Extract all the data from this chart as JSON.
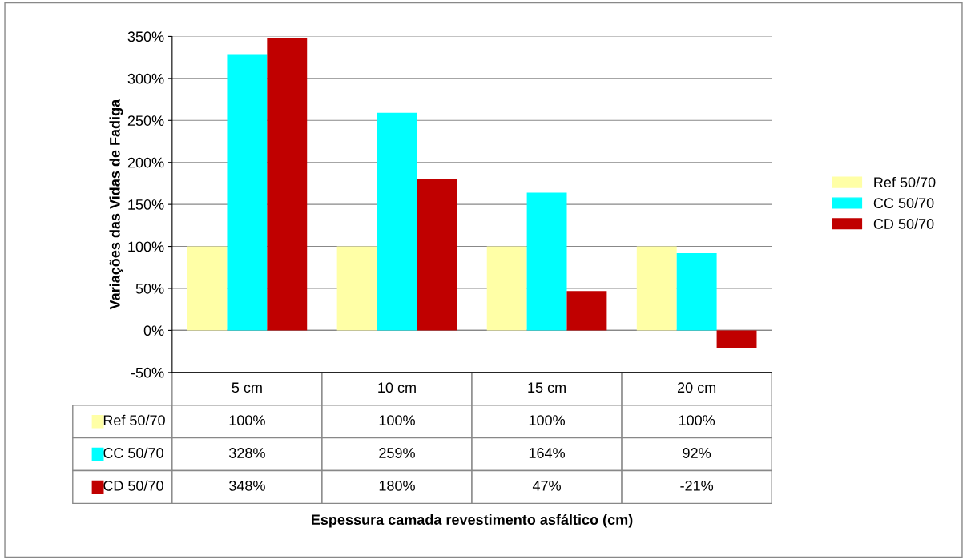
{
  "chart_data": {
    "type": "bar",
    "annotations": [
      "Espessura camada revestimento asfáltico (cm)"
    ],
    "ylabel": "Variações das Vidas de Fadiga",
    "categories": [
      "5 cm",
      "10 cm",
      "15 cm",
      "20 cm"
    ],
    "series": [
      {
        "name": "Ref 50/70",
        "color": "#ffffa6",
        "values": [
          100,
          100,
          100,
          100
        ],
        "value_labels": [
          "100%",
          "100%",
          "100%",
          "100%"
        ]
      },
      {
        "name": "CC 50/70",
        "color": "#00ffff",
        "values": [
          328,
          259,
          164,
          92
        ],
        "value_labels": [
          "328%",
          "259%",
          "164%",
          "92%"
        ]
      },
      {
        "name": "CD 50/70",
        "color": "#c00000",
        "values": [
          348,
          180,
          47,
          -21
        ],
        "value_labels": [
          "348%",
          "180%",
          "47%",
          "-21%"
        ]
      }
    ],
    "ylim": [
      -50,
      350
    ],
    "yticks": [
      {
        "value": -50,
        "label": "-50%"
      },
      {
        "value": 0,
        "label": "0%"
      },
      {
        "value": 50,
        "label": "50%"
      },
      {
        "value": 100,
        "label": "100%"
      },
      {
        "value": 150,
        "label": "150%"
      },
      {
        "value": 200,
        "label": "200%"
      },
      {
        "value": 250,
        "label": "250%"
      },
      {
        "value": 300,
        "label": "300%"
      },
      {
        "value": 350,
        "label": "350%"
      }
    ],
    "grid": "y",
    "legend": "right"
  }
}
